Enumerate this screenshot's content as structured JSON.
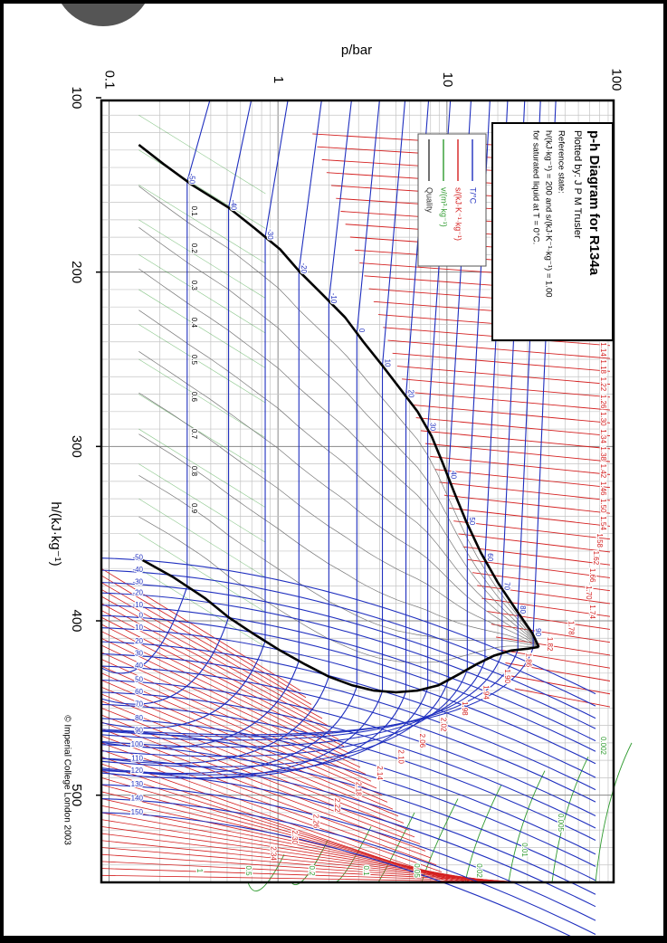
{
  "chart_data": {
    "type": "line",
    "title": "p-h Diagram for R134a",
    "subtitle": "Plotted by: J P M Trusler",
    "reference_state": [
      "Reference state:",
      "h/(kJ·kg⁻¹) = 200 and s/(kJ·K⁻¹·kg⁻¹) = 1.00",
      "for saturated liquid at T = 0°C."
    ],
    "xlabel": "h/(kJ·kg⁻¹)",
    "ylabel": "p/bar",
    "x_ticks": [
      "100",
      "200",
      "300",
      "400",
      "500"
    ],
    "y_ticks": [
      "0.1",
      "1",
      "10",
      "100"
    ],
    "xlim": [
      100,
      550
    ],
    "ylim": [
      0.1,
      100
    ],
    "y_scale": "log",
    "grid": true,
    "legend_position": "top-left",
    "copyright": "© Imperial College London 2003",
    "legend": [
      {
        "name": "T/°C",
        "color": "#1f2fbf"
      },
      {
        "name": "s/(kJ·K⁻¹·kg⁻¹)",
        "color": "#d42020"
      },
      {
        "name": "v/(m³·kg⁻¹)",
        "color": "#2e9a2e"
      },
      {
        "name": "Quality",
        "color": "#333333"
      }
    ],
    "saturation_dome": {
      "liquid": [
        [
          127,
          0.15
        ],
        [
          138,
          0.21
        ],
        [
          150,
          0.31
        ],
        [
          163,
          0.51
        ],
        [
          175,
          0.73
        ],
        [
          187,
          1.03
        ],
        [
          200,
          1.35
        ],
        [
          213,
          1.84
        ],
        [
          226,
          2.5
        ],
        [
          240,
          3.2
        ],
        [
          253,
          4.1
        ],
        [
          266,
          5.2
        ],
        [
          280,
          6.7
        ],
        [
          294,
          8.1
        ],
        [
          309,
          9.4
        ],
        [
          326,
          11.0
        ],
        [
          343,
          13.0
        ],
        [
          361,
          15.9
        ],
        [
          378,
          20.0
        ],
        [
          393,
          25.4
        ],
        [
          407,
          32.0
        ],
        [
          415,
          35.0
        ]
      ],
      "vapor": [
        [
          364,
          0.15
        ],
        [
          375,
          0.24
        ],
        [
          387,
          0.37
        ],
        [
          398,
          0.51
        ],
        [
          408,
          0.73
        ],
        [
          417,
          1.03
        ],
        [
          425,
          1.45
        ],
        [
          432,
          2.0
        ],
        [
          437,
          2.75
        ],
        [
          440,
          3.7
        ],
        [
          441,
          5.0
        ],
        [
          440,
          6.7
        ],
        [
          437,
          8.9
        ],
        [
          431,
          11.6
        ],
        [
          425,
          14.9
        ],
        [
          420,
          19.0
        ],
        [
          417,
          24.0
        ],
        [
          416,
          30.0
        ],
        [
          415,
          35.0
        ]
      ],
      "critical_point": [
        415,
        35.0
      ]
    },
    "isotherm_labels_saturated": [
      "-50",
      "-40",
      "-30",
      "-20",
      "-10",
      "0",
      "10",
      "20",
      "30",
      "40",
      "50",
      "60",
      "70",
      "80",
      "90",
      "100",
      "110",
      "120"
    ],
    "isotherm_pressures_bar": [
      0.29,
      0.51,
      0.84,
      1.33,
      2.0,
      2.93,
      4.15,
      5.72,
      7.7,
      10.2,
      13.2,
      16.8,
      21.2,
      26.3,
      32.4,
      39.7,
      47.2,
      55.0
    ],
    "isotherm_labels_gas": [
      "-50",
      "-40",
      "-30",
      "-20",
      "-10",
      "0",
      "10",
      "20",
      "30",
      "40",
      "50",
      "60",
      "70",
      "80",
      "90",
      "100",
      "110",
      "120",
      "130",
      "140",
      "150"
    ],
    "isotherm_gas_h": [
      364,
      371,
      378,
      384,
      391,
      397,
      404,
      412,
      419,
      426,
      434,
      441,
      448,
      456,
      463,
      471,
      479,
      486,
      494,
      502,
      510
    ],
    "entropy_labels": [
      "0.74",
      "0.78",
      "0.82",
      "0.86",
      "0.90",
      "0.94",
      "0.98",
      "1.02",
      "1.06",
      "1.10",
      "1.14",
      "1.18",
      "1.22",
      "1.26",
      "1.30",
      "1.34",
      "1.38",
      "1.42",
      "1.46",
      "1.50",
      "1.54",
      "1.58",
      "1.62",
      "1.66",
      "1.70",
      "1.74",
      "1.78",
      "1.82",
      "1.86",
      "1.90",
      "1.94",
      "1.98",
      "2.02",
      "2.06",
      "2.10",
      "2.14",
      "2.18",
      "2.22",
      "2.26",
      "2.30",
      "2.34"
    ],
    "quality_labels": [
      "0.1",
      "0.2",
      "0.3",
      "0.4",
      "0.5",
      "0.6",
      "0.7",
      "0.8",
      "0.9"
    ],
    "volume_labels": [
      "0.002",
      "0.005",
      "0.01",
      "0.02",
      "0.05",
      "0.1",
      "0.2",
      "0.5",
      "1"
    ]
  }
}
